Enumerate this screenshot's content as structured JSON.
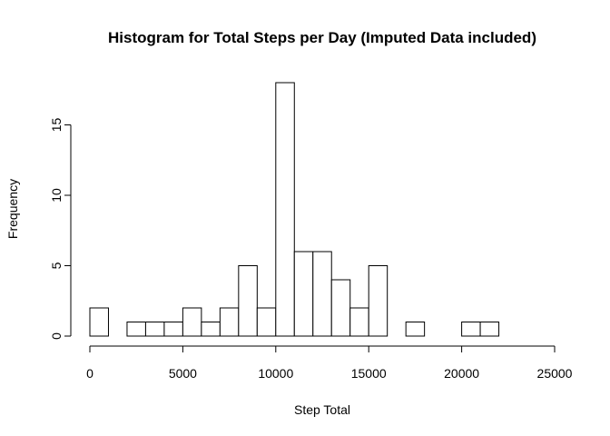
{
  "chart_data": {
    "type": "bar",
    "title": "Histogram for Total Steps per Day (Imputed Data included)",
    "xlabel": "Step Total",
    "ylabel": "Frequency",
    "bin_width": 1000,
    "bin_starts": [
      0,
      1000,
      2000,
      3000,
      4000,
      5000,
      6000,
      7000,
      8000,
      9000,
      10000,
      11000,
      12000,
      13000,
      14000,
      15000,
      16000,
      17000,
      18000,
      19000,
      20000,
      21000
    ],
    "values": [
      2,
      0,
      1,
      1,
      1,
      2,
      1,
      2,
      5,
      2,
      18,
      6,
      6,
      4,
      2,
      5,
      0,
      1,
      0,
      0,
      1,
      1
    ],
    "xlim": [
      0,
      25000
    ],
    "ylim": [
      0,
      18
    ],
    "x_ticks": [
      0,
      5000,
      10000,
      15000,
      20000,
      25000
    ],
    "x_tick_labels": [
      "0",
      "5000",
      "10000",
      "15000",
      "20000",
      "25000"
    ],
    "y_ticks": [
      0,
      5,
      10,
      15
    ],
    "y_tick_labels": [
      "0",
      "5",
      "10",
      "15"
    ],
    "grid": false,
    "bar_fill": "#ffffff",
    "bar_stroke": "#000000"
  }
}
